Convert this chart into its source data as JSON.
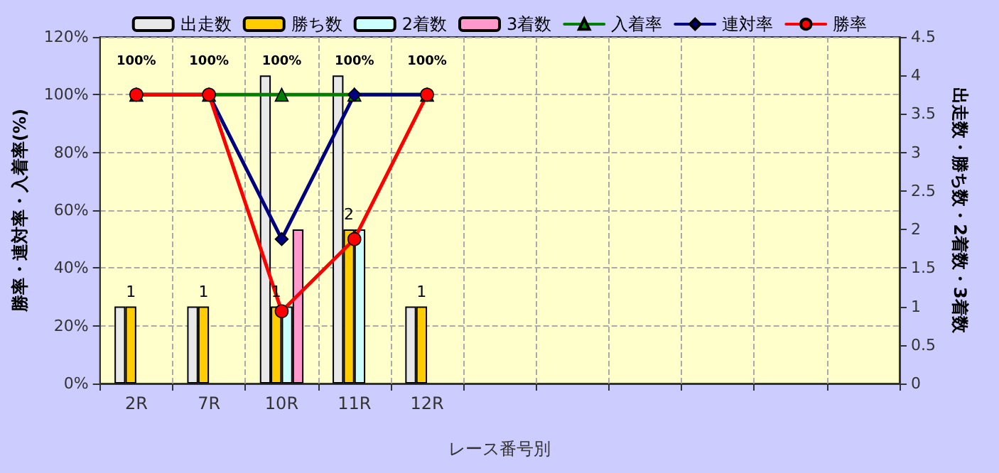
{
  "chart_data": {
    "type": "bar",
    "categories": [
      "2R",
      "7R",
      "10R",
      "11R",
      "12R",
      null,
      null,
      null,
      null,
      null,
      null
    ],
    "xlabel": "レース番号別",
    "ylabel": "勝率・連対率・入着率(%)",
    "y2label": "出走数・勝ち数・2着数・3着数",
    "series": [
      {
        "name": "出走数",
        "axis": "y2",
        "color": "#e8e8e8",
        "values": [
          1,
          1,
          4,
          4,
          1,
          null,
          null,
          null,
          null,
          null,
          null
        ]
      },
      {
        "name": "勝ち数",
        "axis": "y2",
        "color": "#ffcc00",
        "values": [
          1,
          1,
          1,
          2,
          1,
          null,
          null,
          null,
          null,
          null,
          null
        ],
        "value_labels": [
          "1",
          "1",
          "1",
          "2",
          "1",
          null,
          null,
          null,
          null,
          null,
          null
        ]
      },
      {
        "name": "2着数",
        "axis": "y2",
        "color": "#ccffff",
        "values": [
          null,
          null,
          1,
          2,
          null,
          null,
          null,
          null,
          null,
          null,
          null
        ]
      },
      {
        "name": "3着数",
        "axis": "y2",
        "color": "#ff99cc",
        "values": [
          null,
          null,
          2,
          null,
          null,
          null,
          null,
          null,
          null,
          null,
          null
        ]
      },
      {
        "name": "入着率",
        "type": "line",
        "marker": "triangle",
        "color": "#008000",
        "values": [
          100,
          100,
          100,
          100,
          100,
          null,
          null,
          null,
          null,
          null,
          null
        ],
        "value_labels": [
          "100%",
          "100%",
          "100%",
          "100%",
          "100%",
          null,
          null,
          null,
          null,
          null,
          null
        ]
      },
      {
        "name": "連対率",
        "type": "line",
        "marker": "diamond",
        "color": "#000080",
        "values": [
          100,
          100,
          50,
          100,
          100,
          null,
          null,
          null,
          null,
          null,
          null
        ]
      },
      {
        "name": "勝率",
        "type": "line",
        "marker": "circle",
        "color": "#ff0000",
        "values": [
          100,
          100,
          25,
          50,
          100,
          null,
          null,
          null,
          null,
          null,
          null
        ]
      }
    ],
    "ylim": [
      0,
      120
    ],
    "yticks": [
      {
        "value": 0,
        "label": "0%"
      },
      {
        "value": 20,
        "label": "20%"
      },
      {
        "value": 40,
        "label": "40%"
      },
      {
        "value": 60,
        "label": "60%"
      },
      {
        "value": 80,
        "label": "80%"
      },
      {
        "value": 100,
        "label": "100%"
      },
      {
        "value": 120,
        "label": "120%"
      }
    ],
    "y2lim": [
      0,
      4.5
    ],
    "y2ticks": [
      0,
      0.5,
      1,
      1.5,
      2,
      2.5,
      3,
      3.5,
      4,
      4.5
    ],
    "grid": true,
    "legend": "top",
    "line_style": "solid"
  }
}
